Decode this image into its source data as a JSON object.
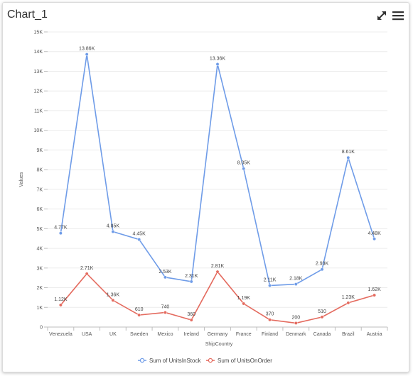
{
  "window": {
    "title": "Chart_1"
  },
  "toolbar": {
    "expand_icon": "expand-icon",
    "menu_icon": "hamburger-menu-icon"
  },
  "chart_data": {
    "type": "line",
    "title": "",
    "xlabel": "ShipCountry",
    "ylabel": "Values",
    "ylim": [
      0,
      15000
    ],
    "yticks": [
      "0",
      "1K",
      "2K",
      "3K",
      "4K",
      "5K",
      "6K",
      "7K",
      "8K",
      "9K",
      "10K",
      "11K",
      "12K",
      "13K",
      "14K",
      "15K"
    ],
    "grid": true,
    "legend_position": "bottom",
    "categories": [
      "Venezuela",
      "USA",
      "UK",
      "Sweden",
      "Mexico",
      "Ireland",
      "Germany",
      "France",
      "Finland",
      "Denmark",
      "Canada",
      "Brazil",
      "Austria"
    ],
    "series": [
      {
        "name": "Sum of UnitsInStock",
        "color": "#6f9ce8",
        "values": [
          4770,
          13860,
          4850,
          4450,
          2530,
          2310,
          13360,
          8050,
          2110,
          2180,
          2930,
          8610,
          4480
        ],
        "labels": [
          "4.77K",
          "13.86K",
          "4.85K",
          "4.45K",
          "2.53K",
          "2.31K",
          "13.36K",
          "8.05K",
          "2.11K",
          "2.18K",
          "2.93K",
          "8.61K",
          "4.48K"
        ]
      },
      {
        "name": "Sum of UnitsOnOrder",
        "color": "#e46b5f",
        "values": [
          1120,
          2710,
          1360,
          610,
          740,
          360,
          2810,
          1190,
          370,
          200,
          510,
          1230,
          1620
        ],
        "labels": [
          "1.12K",
          "2.71K",
          "1.36K",
          "610",
          "740",
          "360",
          "2.81K",
          "1.19K",
          "370",
          "200",
          "510",
          "1.23K",
          "1.62K"
        ]
      }
    ]
  }
}
